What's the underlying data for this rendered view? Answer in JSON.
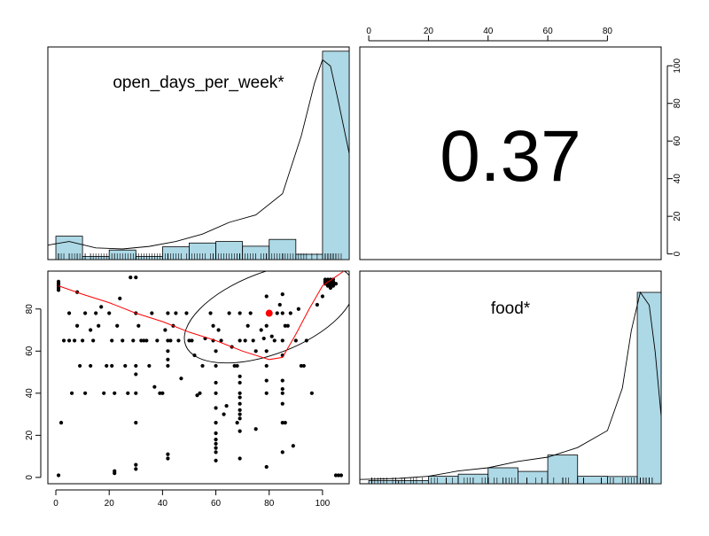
{
  "chart_data": {
    "type": "scatter",
    "variables": [
      "open_days_per_week*",
      "food*"
    ],
    "correlation_label": "0.37",
    "axis_ranges": {
      "open_days_per_week": [
        -3,
        110
      ],
      "food": [
        -3,
        98
      ]
    },
    "tick_labels": {
      "x_bottom": [
        "0",
        "20",
        "40",
        "60",
        "80",
        "100"
      ],
      "y_left": [
        "0",
        "20",
        "40",
        "60",
        "80"
      ],
      "x_top": [
        "0",
        "20",
        "40",
        "60",
        "80"
      ],
      "y_right": [
        "0",
        "20",
        "40",
        "60",
        "80",
        "100"
      ]
    },
    "histograms": {
      "open_days_per_week": {
        "bin_edges": [
          0,
          10,
          20,
          30,
          40,
          50,
          60,
          70,
          80,
          90,
          100,
          110
        ],
        "density": [
          0.011,
          0.0015,
          0.0045,
          0.0015,
          0.006,
          0.0078,
          0.0085,
          0.0063,
          0.0095,
          0.0025,
          0.098
        ],
        "ymax": 0.1
      },
      "food": {
        "bin_edges": [
          0,
          10,
          20,
          30,
          40,
          50,
          60,
          70,
          80,
          90,
          100
        ],
        "density": [
          0.0015,
          0.0015,
          0.0035,
          0.0045,
          0.0075,
          0.0058,
          0.0135,
          0.0035,
          0.0034,
          0.09
        ],
        "ymax": 0.1
      }
    },
    "density_curves": {
      "open_days_per_week": {
        "x": [
          -3,
          5,
          15,
          25,
          35,
          45,
          55,
          65,
          75,
          85,
          92,
          97,
          100,
          103,
          106,
          110
        ],
        "y": [
          0.0068,
          0.0085,
          0.0055,
          0.005,
          0.0062,
          0.0085,
          0.012,
          0.0175,
          0.021,
          0.031,
          0.058,
          0.083,
          0.094,
          0.091,
          0.074,
          0.05
        ]
      },
      "food": {
        "x": [
          -3,
          10,
          20,
          30,
          40,
          50,
          60,
          70,
          80,
          85,
          88,
          91,
          94,
          96,
          98
        ],
        "y": [
          0.002,
          0.0025,
          0.0035,
          0.006,
          0.0075,
          0.0105,
          0.0125,
          0.017,
          0.025,
          0.045,
          0.072,
          0.09,
          0.084,
          0.062,
          0.032
        ]
      }
    },
    "points": [
      [
        1,
        1
      ],
      [
        1,
        89
      ],
      [
        1,
        90
      ],
      [
        1,
        91
      ],
      [
        1,
        92
      ],
      [
        1,
        93
      ],
      [
        2,
        26
      ],
      [
        3,
        65
      ],
      [
        5,
        65
      ],
      [
        5,
        78
      ],
      [
        6,
        40
      ],
      [
        7,
        65
      ],
      [
        8,
        88
      ],
      [
        8,
        72
      ],
      [
        9,
        53
      ],
      [
        10,
        65
      ],
      [
        11,
        40
      ],
      [
        11,
        78
      ],
      [
        13,
        70
      ],
      [
        13,
        53
      ],
      [
        14,
        65
      ],
      [
        15,
        78
      ],
      [
        16,
        72
      ],
      [
        17,
        81
      ],
      [
        18,
        40
      ],
      [
        19,
        53
      ],
      [
        20,
        78
      ],
      [
        21,
        65
      ],
      [
        21,
        53
      ],
      [
        22,
        3
      ],
      [
        22,
        2
      ],
      [
        22,
        40
      ],
      [
        23,
        72
      ],
      [
        24,
        85
      ],
      [
        25,
        65
      ],
      [
        26,
        53
      ],
      [
        27,
        40
      ],
      [
        28,
        95
      ],
      [
        29,
        65
      ],
      [
        30,
        95
      ],
      [
        30,
        78
      ],
      [
        30,
        26
      ],
      [
        30,
        53
      ],
      [
        30,
        49
      ],
      [
        30,
        40
      ],
      [
        30,
        6
      ],
      [
        30,
        4
      ],
      [
        31,
        72
      ],
      [
        32,
        65
      ],
      [
        33,
        65
      ],
      [
        34,
        65
      ],
      [
        35,
        53
      ],
      [
        36,
        78
      ],
      [
        37,
        43
      ],
      [
        38,
        65
      ],
      [
        39,
        40
      ],
      [
        40,
        40
      ],
      [
        41,
        70
      ],
      [
        42,
        65
      ],
      [
        42,
        60
      ],
      [
        42,
        56
      ],
      [
        42,
        53
      ],
      [
        42,
        11
      ],
      [
        42,
        9
      ],
      [
        42,
        78
      ],
      [
        43,
        65
      ],
      [
        44,
        72
      ],
      [
        45,
        78
      ],
      [
        46,
        65
      ],
      [
        47,
        47
      ],
      [
        49,
        78
      ],
      [
        50,
        65
      ],
      [
        51,
        65
      ],
      [
        52,
        58
      ],
      [
        53,
        39
      ],
      [
        54,
        40
      ],
      [
        55,
        53
      ],
      [
        56,
        66
      ],
      [
        58,
        78
      ],
      [
        59,
        65
      ],
      [
        59,
        72
      ],
      [
        60,
        60
      ],
      [
        60,
        53
      ],
      [
        60,
        45
      ],
      [
        60,
        40
      ],
      [
        60,
        33
      ],
      [
        60,
        26
      ],
      [
        60,
        21
      ],
      [
        60,
        18
      ],
      [
        60,
        16
      ],
      [
        60,
        14
      ],
      [
        60,
        12
      ],
      [
        60,
        8
      ],
      [
        61,
        70
      ],
      [
        62,
        65
      ],
      [
        63,
        30
      ],
      [
        64,
        34
      ],
      [
        65,
        78
      ],
      [
        66,
        62
      ],
      [
        67,
        53
      ],
      [
        68,
        53
      ],
      [
        68,
        26
      ],
      [
        69,
        78
      ],
      [
        69,
        48
      ],
      [
        69,
        45
      ],
      [
        69,
        40
      ],
      [
        69,
        38
      ],
      [
        69,
        35
      ],
      [
        69,
        32
      ],
      [
        69,
        30
      ],
      [
        69,
        28
      ],
      [
        69,
        22
      ],
      [
        69,
        9
      ],
      [
        69,
        65
      ],
      [
        71,
        65
      ],
      [
        72,
        72
      ],
      [
        73,
        78
      ],
      [
        74,
        65
      ],
      [
        75,
        23
      ],
      [
        75,
        60
      ],
      [
        77,
        70
      ],
      [
        78,
        66
      ],
      [
        79,
        5
      ],
      [
        79,
        72
      ],
      [
        79,
        60
      ],
      [
        79,
        53
      ],
      [
        79,
        46
      ],
      [
        79,
        40
      ],
      [
        79,
        86
      ],
      [
        80,
        78
      ],
      [
        81,
        67
      ],
      [
        82,
        65
      ],
      [
        83,
        78
      ],
      [
        84,
        82
      ],
      [
        85,
        87
      ],
      [
        85,
        78
      ],
      [
        85,
        65
      ],
      [
        85,
        58
      ],
      [
        85,
        46
      ],
      [
        85,
        42
      ],
      [
        85,
        40
      ],
      [
        85,
        35
      ],
      [
        85,
        26
      ],
      [
        85,
        12
      ],
      [
        86,
        72
      ],
      [
        86,
        26
      ],
      [
        87,
        72
      ],
      [
        88,
        78
      ],
      [
        89,
        15
      ],
      [
        90,
        65
      ],
      [
        91,
        80
      ],
      [
        92,
        53
      ],
      [
        93,
        53
      ],
      [
        94,
        65
      ],
      [
        96,
        40
      ],
      [
        98,
        82
      ],
      [
        100,
        86
      ],
      [
        101,
        92
      ],
      [
        101,
        93
      ],
      [
        101,
        94
      ],
      [
        102,
        91
      ],
      [
        102,
        92
      ],
      [
        102,
        93
      ],
      [
        102,
        94
      ],
      [
        103,
        90
      ],
      [
        103,
        91
      ],
      [
        103,
        92
      ],
      [
        103,
        93
      ],
      [
        103,
        94
      ],
      [
        104,
        91
      ],
      [
        104,
        92
      ],
      [
        104,
        93
      ],
      [
        104,
        94
      ],
      [
        105,
        92
      ],
      [
        105,
        1
      ],
      [
        106,
        1
      ],
      [
        107,
        1
      ]
    ],
    "highlight_point": [
      80,
      78
    ],
    "ellipse": {
      "center": [
        80,
        78
      ]
    },
    "smoother": {
      "x": [
        1,
        10,
        20,
        30,
        40,
        50,
        60,
        70,
        80,
        85,
        90,
        95,
        100,
        108
      ],
      "y": [
        91,
        87,
        83,
        78,
        74,
        69,
        65,
        60,
        56,
        57,
        68,
        80,
        91,
        98
      ]
    },
    "grid": false
  }
}
